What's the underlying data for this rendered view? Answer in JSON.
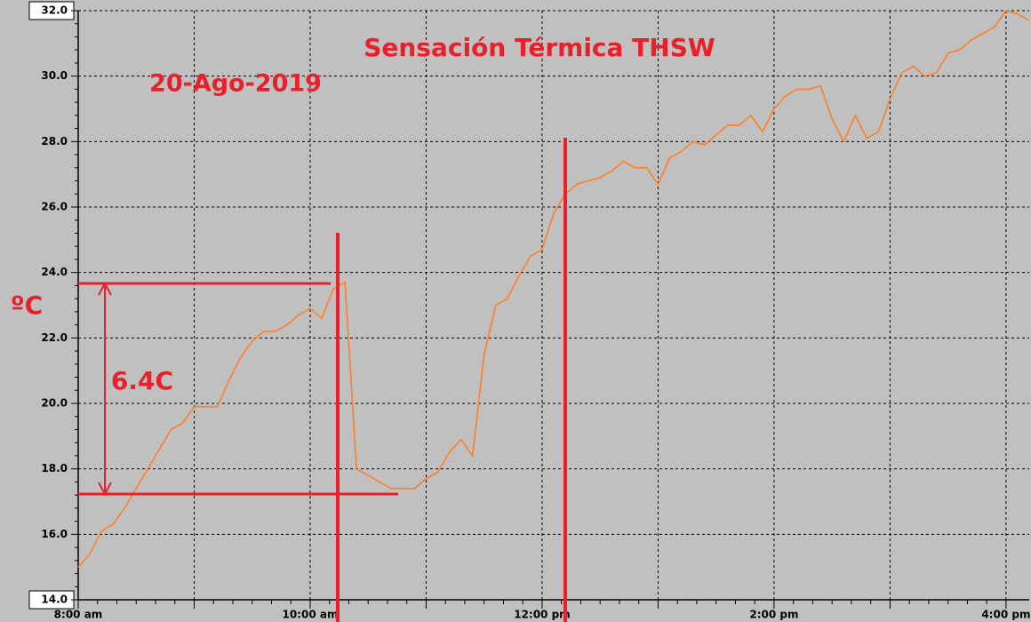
{
  "chart_data": {
    "type": "line",
    "title": "Sensación Térmica THSW",
    "annotations": [
      "20-Ago-2019",
      "ºC",
      "6.4C"
    ],
    "x": [
      8.0,
      8.1,
      8.2,
      8.3,
      8.4,
      8.5,
      8.6,
      8.7,
      8.8,
      8.9,
      9.0,
      9.1,
      9.2,
      9.3,
      9.4,
      9.5,
      9.6,
      9.7,
      9.8,
      9.9,
      10.0,
      10.1,
      10.2,
      10.3,
      10.4,
      10.5,
      10.6,
      10.7,
      10.8,
      10.9,
      11.0,
      11.1,
      11.2,
      11.3,
      11.4,
      11.5,
      11.6,
      11.7,
      11.8,
      11.9,
      12.0,
      12.1,
      12.2,
      12.3,
      12.4,
      12.5,
      12.6,
      12.7,
      12.8,
      12.9,
      13.0,
      13.1,
      13.2,
      13.3,
      13.4,
      13.5,
      13.6,
      13.7,
      13.8,
      13.9,
      14.0,
      14.1,
      14.2,
      14.3,
      14.4,
      14.5,
      14.6,
      14.7,
      14.8,
      14.9,
      15.0,
      15.1,
      15.2,
      15.3,
      15.4,
      15.5,
      15.6,
      15.7,
      15.8,
      15.9,
      16.0,
      16.1,
      16.2
    ],
    "series": [
      {
        "name": "THSW",
        "color": "#ff7f27",
        "values": [
          15.0,
          15.4,
          16.1,
          16.3,
          16.8,
          17.4,
          18.0,
          18.6,
          19.2,
          19.4,
          19.9,
          19.9,
          19.9,
          20.7,
          21.4,
          21.9,
          22.2,
          22.2,
          22.4,
          22.7,
          22.9,
          22.6,
          23.5,
          23.7,
          18.0,
          17.8,
          17.6,
          17.4,
          17.4,
          17.4,
          17.7,
          17.9,
          18.5,
          18.9,
          18.4,
          21.5,
          23.0,
          23.2,
          23.9,
          24.5,
          24.7,
          25.8,
          26.4,
          26.7,
          26.8,
          26.9,
          27.1,
          27.4,
          27.2,
          27.2,
          26.7,
          27.5,
          27.7,
          28.0,
          27.9,
          28.2,
          28.5,
          28.5,
          28.8,
          28.3,
          29.0,
          29.4,
          29.6,
          29.6,
          29.7,
          28.7,
          28.0,
          28.8,
          28.1,
          28.3,
          29.3,
          30.1,
          30.3,
          30.0,
          30.1,
          30.7,
          30.8,
          31.1,
          31.3,
          31.5,
          32.0,
          31.9,
          31.7
        ]
      }
    ],
    "xlim": [
      8,
      16.2
    ],
    "xticks": [
      {
        "value": 8,
        "label": "8:00 am"
      },
      {
        "value": 9,
        "label": null
      },
      {
        "value": 10,
        "label": "10:00 am"
      },
      {
        "value": 11,
        "label": null
      },
      {
        "value": 12,
        "label": "12:00 pm"
      },
      {
        "value": 13,
        "label": null
      },
      {
        "value": 14,
        "label": "2:00 pm"
      },
      {
        "value": 15,
        "label": null
      },
      {
        "value": 16,
        "label": "4:00 pm"
      }
    ],
    "ylim": [
      14,
      32
    ],
    "yticks": [
      {
        "value": 14,
        "label": "14.0"
      },
      {
        "value": 16,
        "label": "16.0"
      },
      {
        "value": 18,
        "label": "18.0"
      },
      {
        "value": 20,
        "label": "20.0"
      },
      {
        "value": 22,
        "label": "22.0"
      },
      {
        "value": 24,
        "label": "24.0"
      },
      {
        "value": 26,
        "label": "26.0"
      },
      {
        "value": 28,
        "label": "28.0"
      },
      {
        "value": 30,
        "label": "30.0"
      },
      {
        "value": 32,
        "label": "32.0"
      }
    ],
    "grid": true
  }
}
